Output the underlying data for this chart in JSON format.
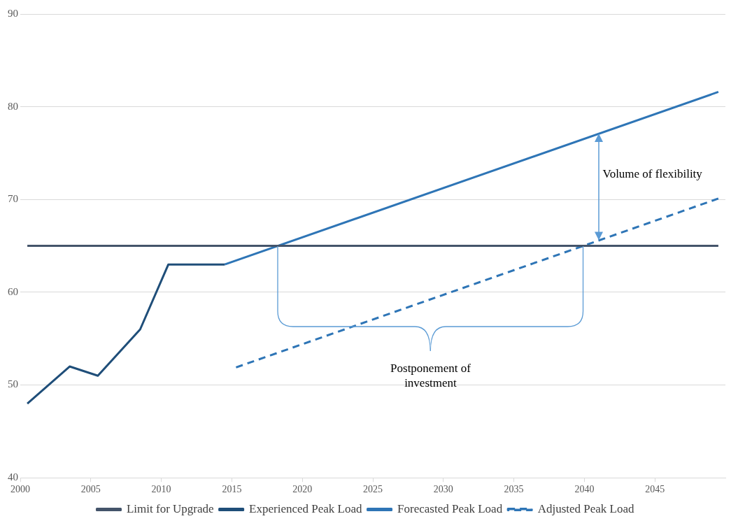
{
  "chart_data": {
    "type": "line",
    "xlim": [
      2000,
      2050
    ],
    "xticks": [
      2000,
      2005,
      2010,
      2015,
      2020,
      2025,
      2030,
      2035,
      2040,
      2045
    ],
    "ylim": [
      40,
      90
    ],
    "yticks": [
      40,
      50,
      60,
      70,
      80,
      90
    ],
    "grid": "y",
    "legend": "bottom",
    "marker": "none",
    "series": [
      {
        "name": "Limit for Upgrade",
        "color": "#44546a",
        "x": [
          2000.5,
          2049.5
        ],
        "values": [
          65,
          65
        ]
      },
      {
        "name": "Experienced Peak Load",
        "color": "#1f4e79",
        "x": [
          2000.5,
          2003.5,
          2005.5,
          2008.5,
          2010.5,
          2014.5
        ],
        "values": [
          48,
          52,
          51,
          56,
          63,
          63
        ]
      },
      {
        "name": "Forecasted Peak Load",
        "color": "#2e75b6",
        "x": [
          2014.5,
          2049.5
        ],
        "values": [
          63,
          81.6
        ]
      },
      {
        "name": "Adjusted Peak Load",
        "color": "#2e75b6",
        "line_style": "dashed",
        "x": [
          2015.3,
          2049.5
        ],
        "values": [
          51.9,
          70.1
        ]
      }
    ],
    "annotations": [
      "Volume of flexibility",
      "Postponement of\ninvestment"
    ]
  }
}
